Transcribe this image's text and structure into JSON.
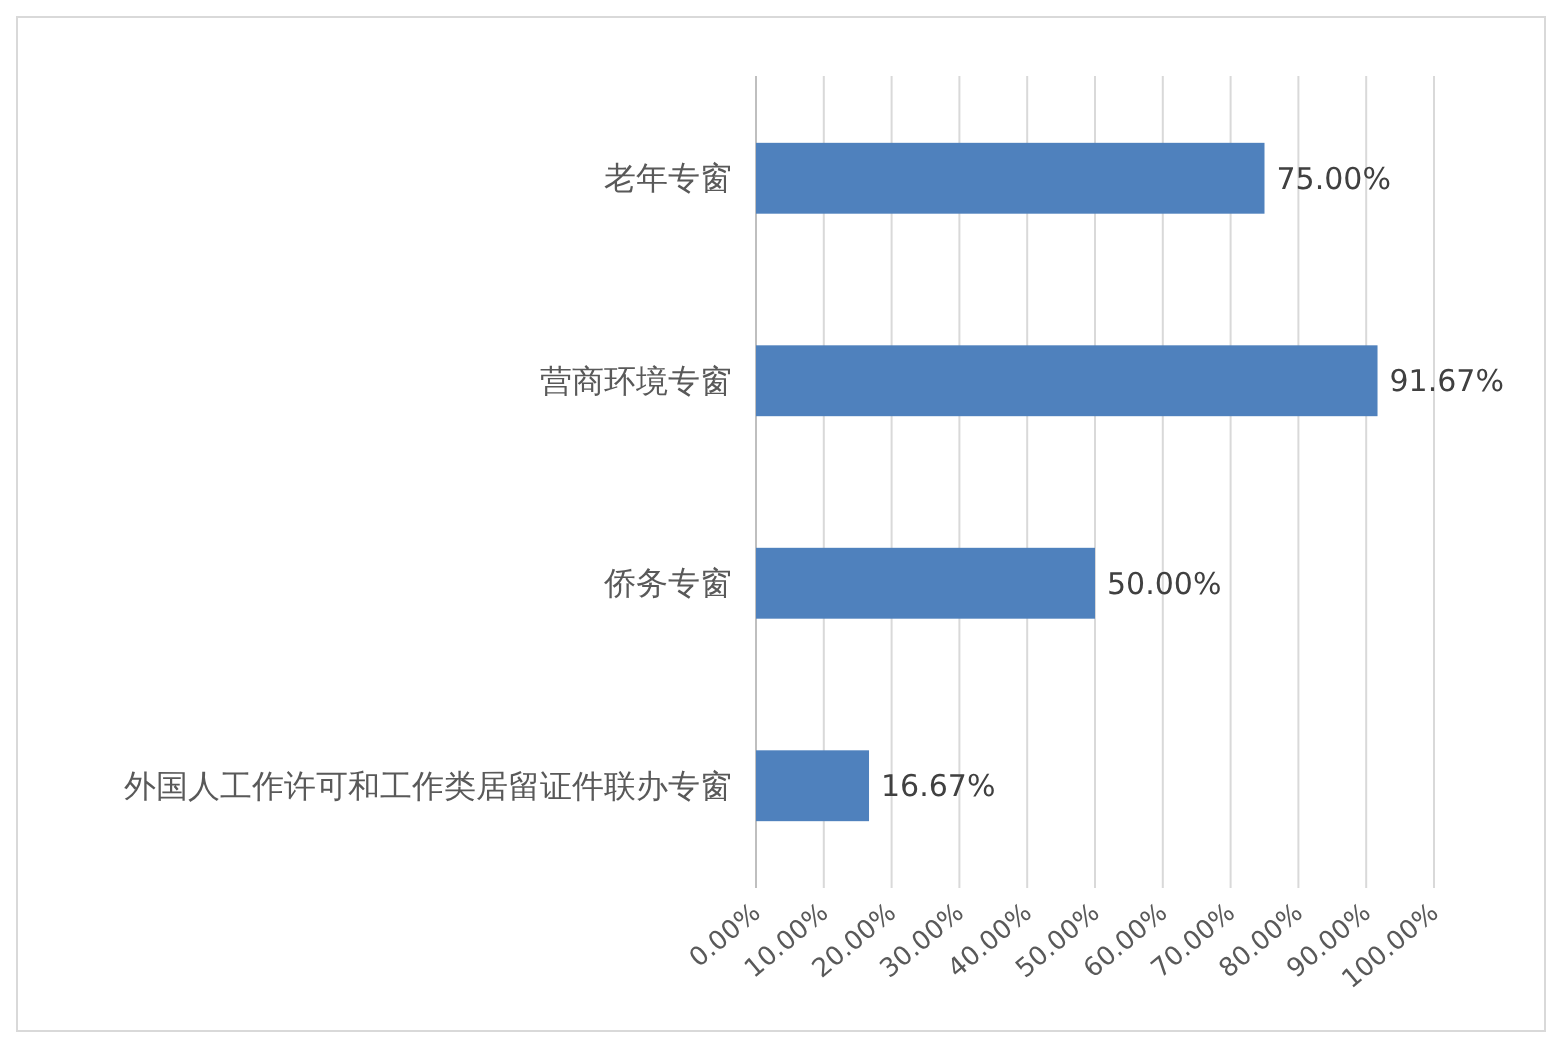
{
  "chart_data": {
    "type": "bar",
    "orientation": "horizontal",
    "categories": [
      "老年专窗",
      "营商环境专窗",
      "侨务专窗",
      "外国人工作许可和工作类居留证件联办专窗"
    ],
    "values": [
      75,
      91.67,
      50,
      16.67
    ],
    "color": "#4f81bd",
    "value_labels": [
      "75.00%",
      "91.67%",
      "50.00%",
      "16.67%"
    ],
    "xlim": [
      0,
      100
    ],
    "xticks": [
      {
        "value": 0,
        "label": "0.00%"
      },
      {
        "value": 10,
        "label": "10.00%"
      },
      {
        "value": 20,
        "label": "20.00%"
      },
      {
        "value": 30,
        "label": "30.00%"
      },
      {
        "value": 40,
        "label": "40.00%"
      },
      {
        "value": 50,
        "label": "50.00%"
      },
      {
        "value": 60,
        "label": "60.00%"
      },
      {
        "value": 70,
        "label": "70.00%"
      },
      {
        "value": 80,
        "label": "80.00%"
      },
      {
        "value": 90,
        "label": "90.00%"
      },
      {
        "value": 100,
        "label": "100.00%"
      }
    ],
    "grid": "x"
  }
}
